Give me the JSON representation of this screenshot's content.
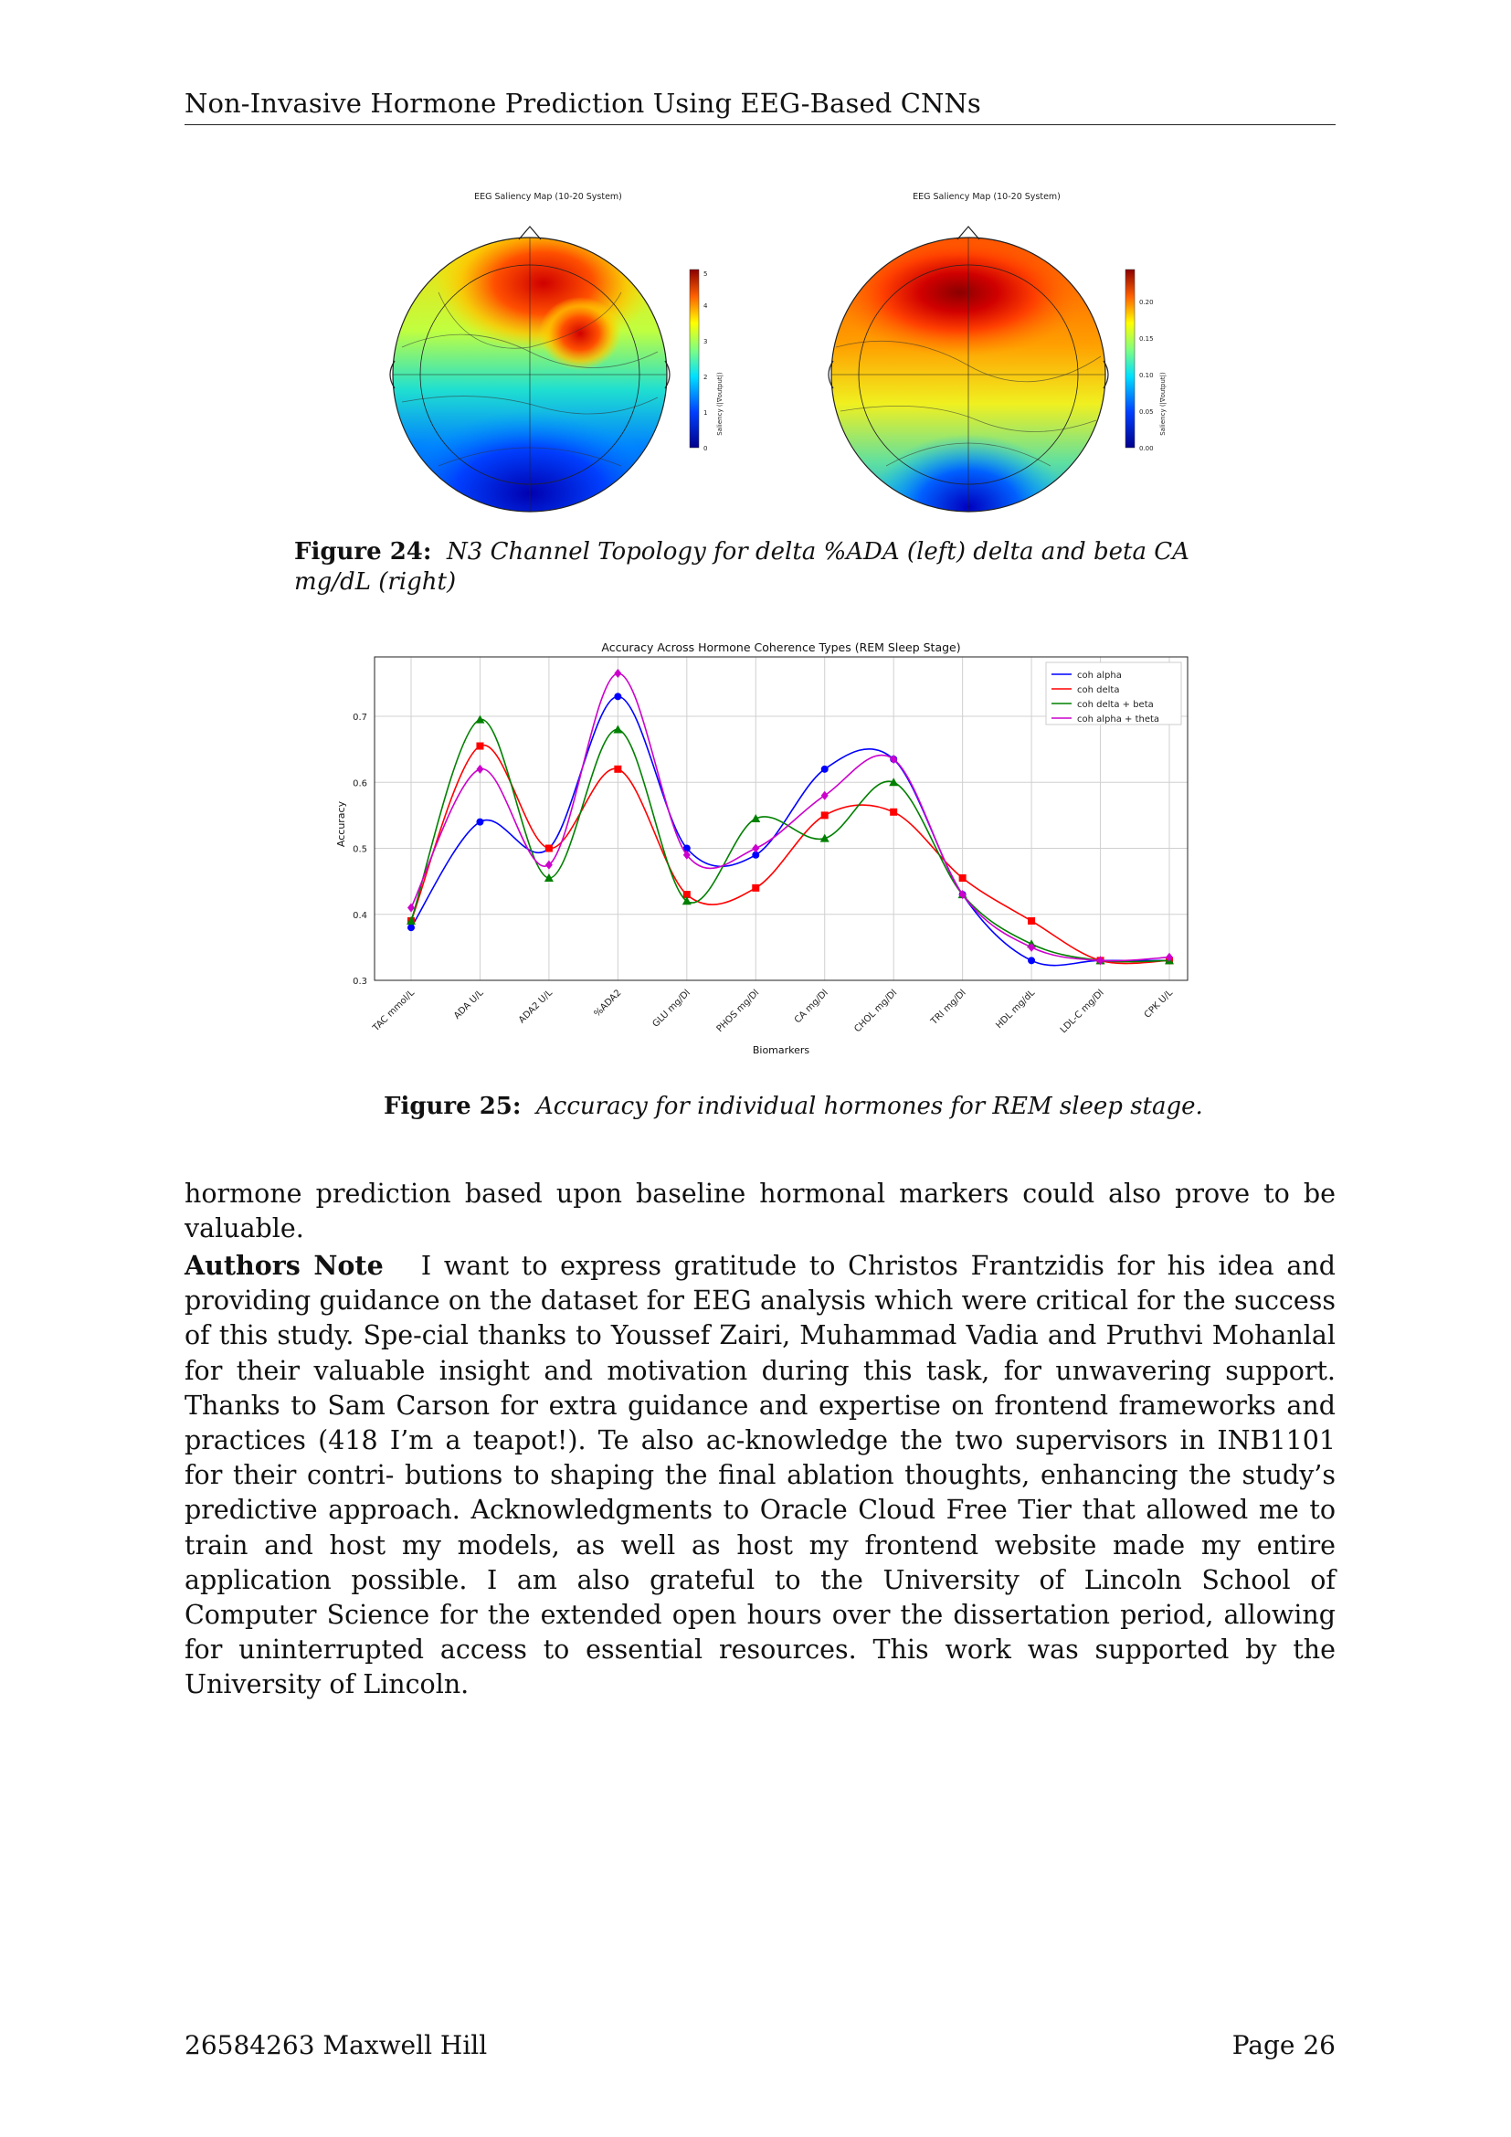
{
  "header": {
    "title": "Non-Invasive Hormone Prediction Using EEG-Based CNNs"
  },
  "figure24": {
    "left_title": "EEG Saliency Map (10-20 System)",
    "right_title": "EEG Saliency Map (10-20 System)",
    "left_colorbar": {
      "label": "Saliency (|∇output|)",
      "ticks": [
        "0",
        "1",
        "2",
        "3",
        "4",
        "5"
      ]
    },
    "right_colorbar": {
      "label": "Saliency (|∇output|)",
      "ticks": [
        "0.00",
        "0.05",
        "0.10",
        "0.15",
        "0.20"
      ]
    },
    "caption_label": "Figure 24:",
    "caption_text": "N3 Channel Topology for delta %ADA (left) delta and beta CA mg/dL (right)"
  },
  "figure25": {
    "caption_label": "Figure 25:",
    "caption_text": "Accuracy for individual hormones for REM sleep stage."
  },
  "chart_data": {
    "type": "line",
    "title": "Accuracy Across Hormone Coherence Types (REM Sleep Stage)",
    "xlabel": "Biomarkers",
    "ylabel": "Accuracy",
    "ylim": [
      0.3,
      0.79
    ],
    "yticks": [
      0.3,
      0.4,
      0.5,
      0.6,
      0.7
    ],
    "grid": true,
    "legend_position": "top-right",
    "categories": [
      "TAC mmol/L",
      "ADA U/L",
      "ADA2 U/L",
      "%ADA2",
      "GLU mg/Dl",
      "PHOS mg/Dl",
      "CA mg/Dl",
      "CHOL mg/Dl",
      "TRI mg/Dl",
      "HDL mg/dL",
      "LDL-C mg/Dl",
      "CPK U/L"
    ],
    "series": [
      {
        "name": "coh alpha",
        "color": "#0000ff",
        "marker": "circle",
        "values": [
          0.38,
          0.54,
          0.5,
          0.73,
          0.5,
          0.49,
          0.62,
          0.635,
          0.43,
          0.33,
          0.33,
          0.33
        ]
      },
      {
        "name": "coh delta",
        "color": "#ff0000",
        "marker": "square",
        "values": [
          0.39,
          0.655,
          0.5,
          0.62,
          0.43,
          0.44,
          0.55,
          0.555,
          0.455,
          0.39,
          0.33,
          0.33
        ]
      },
      {
        "name": "coh delta + beta",
        "color": "#008000",
        "marker": "triangle",
        "values": [
          0.39,
          0.695,
          0.455,
          0.68,
          0.42,
          0.545,
          0.515,
          0.6,
          0.43,
          0.355,
          0.33,
          0.33
        ]
      },
      {
        "name": "coh alpha + theta",
        "color": "#cc00cc",
        "marker": "diamond",
        "values": [
          0.41,
          0.62,
          0.475,
          0.765,
          0.49,
          0.5,
          0.58,
          0.635,
          0.43,
          0.35,
          0.33,
          0.335
        ]
      }
    ]
  },
  "body": {
    "p1": "hormone prediction based upon baseline hormonal markers could also prove to be valuable.",
    "p2_lead": "Authors Note",
    "p2": "I want to express gratitude to Christos Frantzidis for his idea and providing guidance on the dataset for EEG analysis which were critical for the success of this study. Spe-cial thanks to Youssef Zairi, Muhammad Vadia and Pruthvi Mohanlal for their valuable insight and motivation during this task, for unwavering support.  Thanks to Sam Carson for extra guidance and expertise on frontend frameworks and practices (418 I’m a teapot!).  Te also ac-knowledge the two supervisors in INB1101 for their contri- butions to shaping the final ablation thoughts, enhancing the study’s predictive approach. Acknowledgments to Oracle Cloud Free Tier that allowed me to train and host my models, as well as host my frontend website made my entire application possible. I am also grateful to the University of Lincoln School of Computer Science for the extended open hours over the dissertation period, allowing for uninterrupted access to essential resources. This work was supported by the University of Lincoln."
  },
  "footer": {
    "left": "26584263 Maxwell Hill",
    "right": "Page 26"
  }
}
